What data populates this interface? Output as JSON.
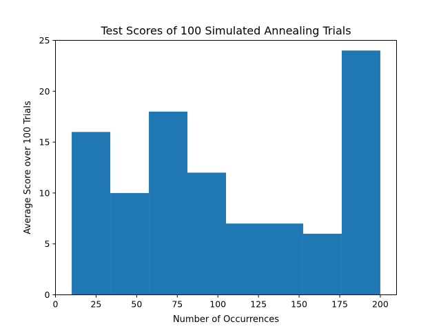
{
  "chart_data": {
    "type": "bar",
    "title": "Test Scores of 100 Simulated Annealing Trials",
    "xlabel": "Number of Occurrences",
    "ylabel": "Average Score over 100 Trials",
    "xlim": [
      0,
      210
    ],
    "ylim": [
      0,
      25
    ],
    "xticks": [
      0,
      25,
      50,
      75,
      100,
      125,
      150,
      175,
      200
    ],
    "yticks": [
      0,
      5,
      10,
      15,
      20,
      25
    ],
    "bar_color": "#1f77b4",
    "grid": false,
    "bins": [
      {
        "x0": 10.0,
        "x1": 33.75,
        "value": 16
      },
      {
        "x0": 33.75,
        "x1": 57.5,
        "value": 10
      },
      {
        "x0": 57.5,
        "x1": 81.25,
        "value": 18
      },
      {
        "x0": 81.25,
        "x1": 105.0,
        "value": 12
      },
      {
        "x0": 105.0,
        "x1": 128.75,
        "value": 7
      },
      {
        "x0": 128.75,
        "x1": 152.5,
        "value": 7
      },
      {
        "x0": 152.5,
        "x1": 176.25,
        "value": 6
      },
      {
        "x0": 176.25,
        "x1": 200.0,
        "value": 24
      }
    ]
  }
}
